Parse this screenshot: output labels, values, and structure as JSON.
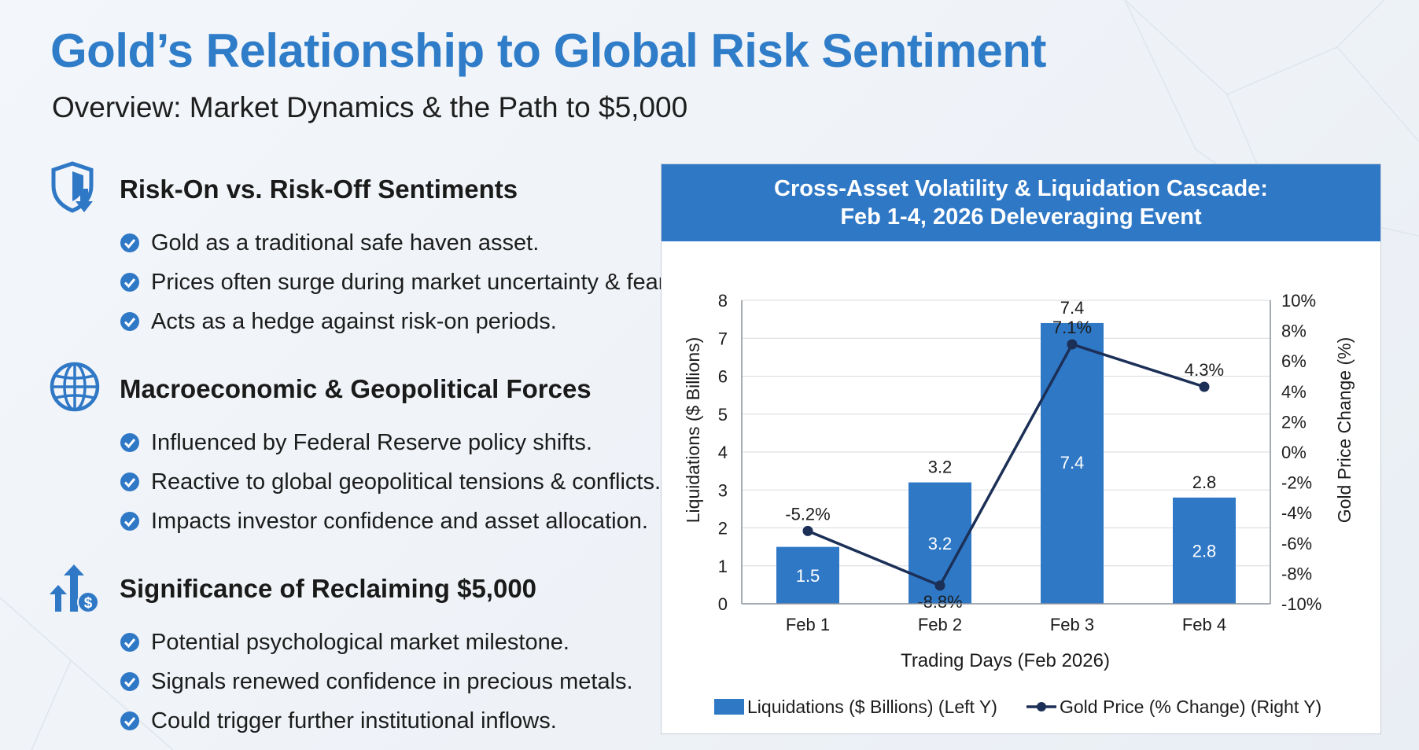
{
  "page": {
    "title": "Gold’s Relationship to Global Risk Sentiment",
    "subtitle": "Overview: Market Dynamics & the Path to $5,000"
  },
  "colors": {
    "title_blue": "#2f7cc8",
    "icon_blue": "#2f78c6",
    "bar_blue": "#2f78c6",
    "line_navy": "#1b2f57",
    "header_blue": "#2f78c6"
  },
  "sections": [
    {
      "icon": "shield-arrow-down-icon",
      "heading": "Risk-On vs. Risk-Off Sentiments",
      "bullets": [
        "Gold as a traditional safe haven asset.",
        "Prices often surge during market uncertainty & fear.",
        "Acts as a hedge against risk-on periods."
      ]
    },
    {
      "icon": "globe-icon",
      "heading": "Macroeconomic & Geopolitical Forces",
      "bullets": [
        "Influenced by Federal Reserve policy shifts.",
        "Reactive to global geopolitical tensions & conflicts.",
        "Impacts investor confidence and asset allocation."
      ]
    },
    {
      "icon": "arrows-up-dollar-icon",
      "heading": "Significance of Reclaiming $5,000",
      "bullets": [
        "Potential psychological market milestone.",
        "Signals renewed confidence in precious metals.",
        "Could trigger further institutional inflows."
      ]
    }
  ],
  "chart_data": {
    "type": "bar",
    "title_line1": "Cross-Asset Volatility & Liquidation Cascade:",
    "title_line2": "Feb 1-4, 2026 Deleveraging Event",
    "categories": [
      "Feb 1",
      "Feb 2",
      "Feb 3",
      "Feb 4"
    ],
    "xlabel": "Trading Days (Feb 2026)",
    "ylabel": "Liquidations ($ Billions)",
    "ylabel_right": "Gold Price Change (%)",
    "ylim": [
      0,
      8
    ],
    "yticks": [
      "0",
      "1",
      "2",
      "3",
      "4",
      "5",
      "6",
      "7",
      "8"
    ],
    "ylim_right": [
      -10,
      10
    ],
    "yticks_right": [
      "-10%",
      "-8%",
      "-6%",
      "-4%",
      "-2%",
      "0%",
      "2%",
      "4%",
      "6%",
      "8%",
      "10%"
    ],
    "grid": true,
    "legend_position": "bottom",
    "series": [
      {
        "name": "Liquidations ($ Billions) (Left Y)",
        "type": "bar",
        "axis": "left",
        "values": [
          1.5,
          3.2,
          7.4,
          2.8
        ],
        "inner_labels": [
          "1.5",
          "3.2",
          "7.4",
          "2.8"
        ],
        "top_labels": [
          "",
          "3.2",
          "7.4",
          "2.8"
        ]
      },
      {
        "name": "Gold Price (% Change) (Right Y)",
        "type": "line",
        "axis": "right",
        "values": [
          -5.2,
          -8.8,
          7.1,
          4.3
        ],
        "labels": [
          "-5.2%",
          "-8.8%",
          "7.1%",
          "4.3%"
        ]
      }
    ]
  }
}
